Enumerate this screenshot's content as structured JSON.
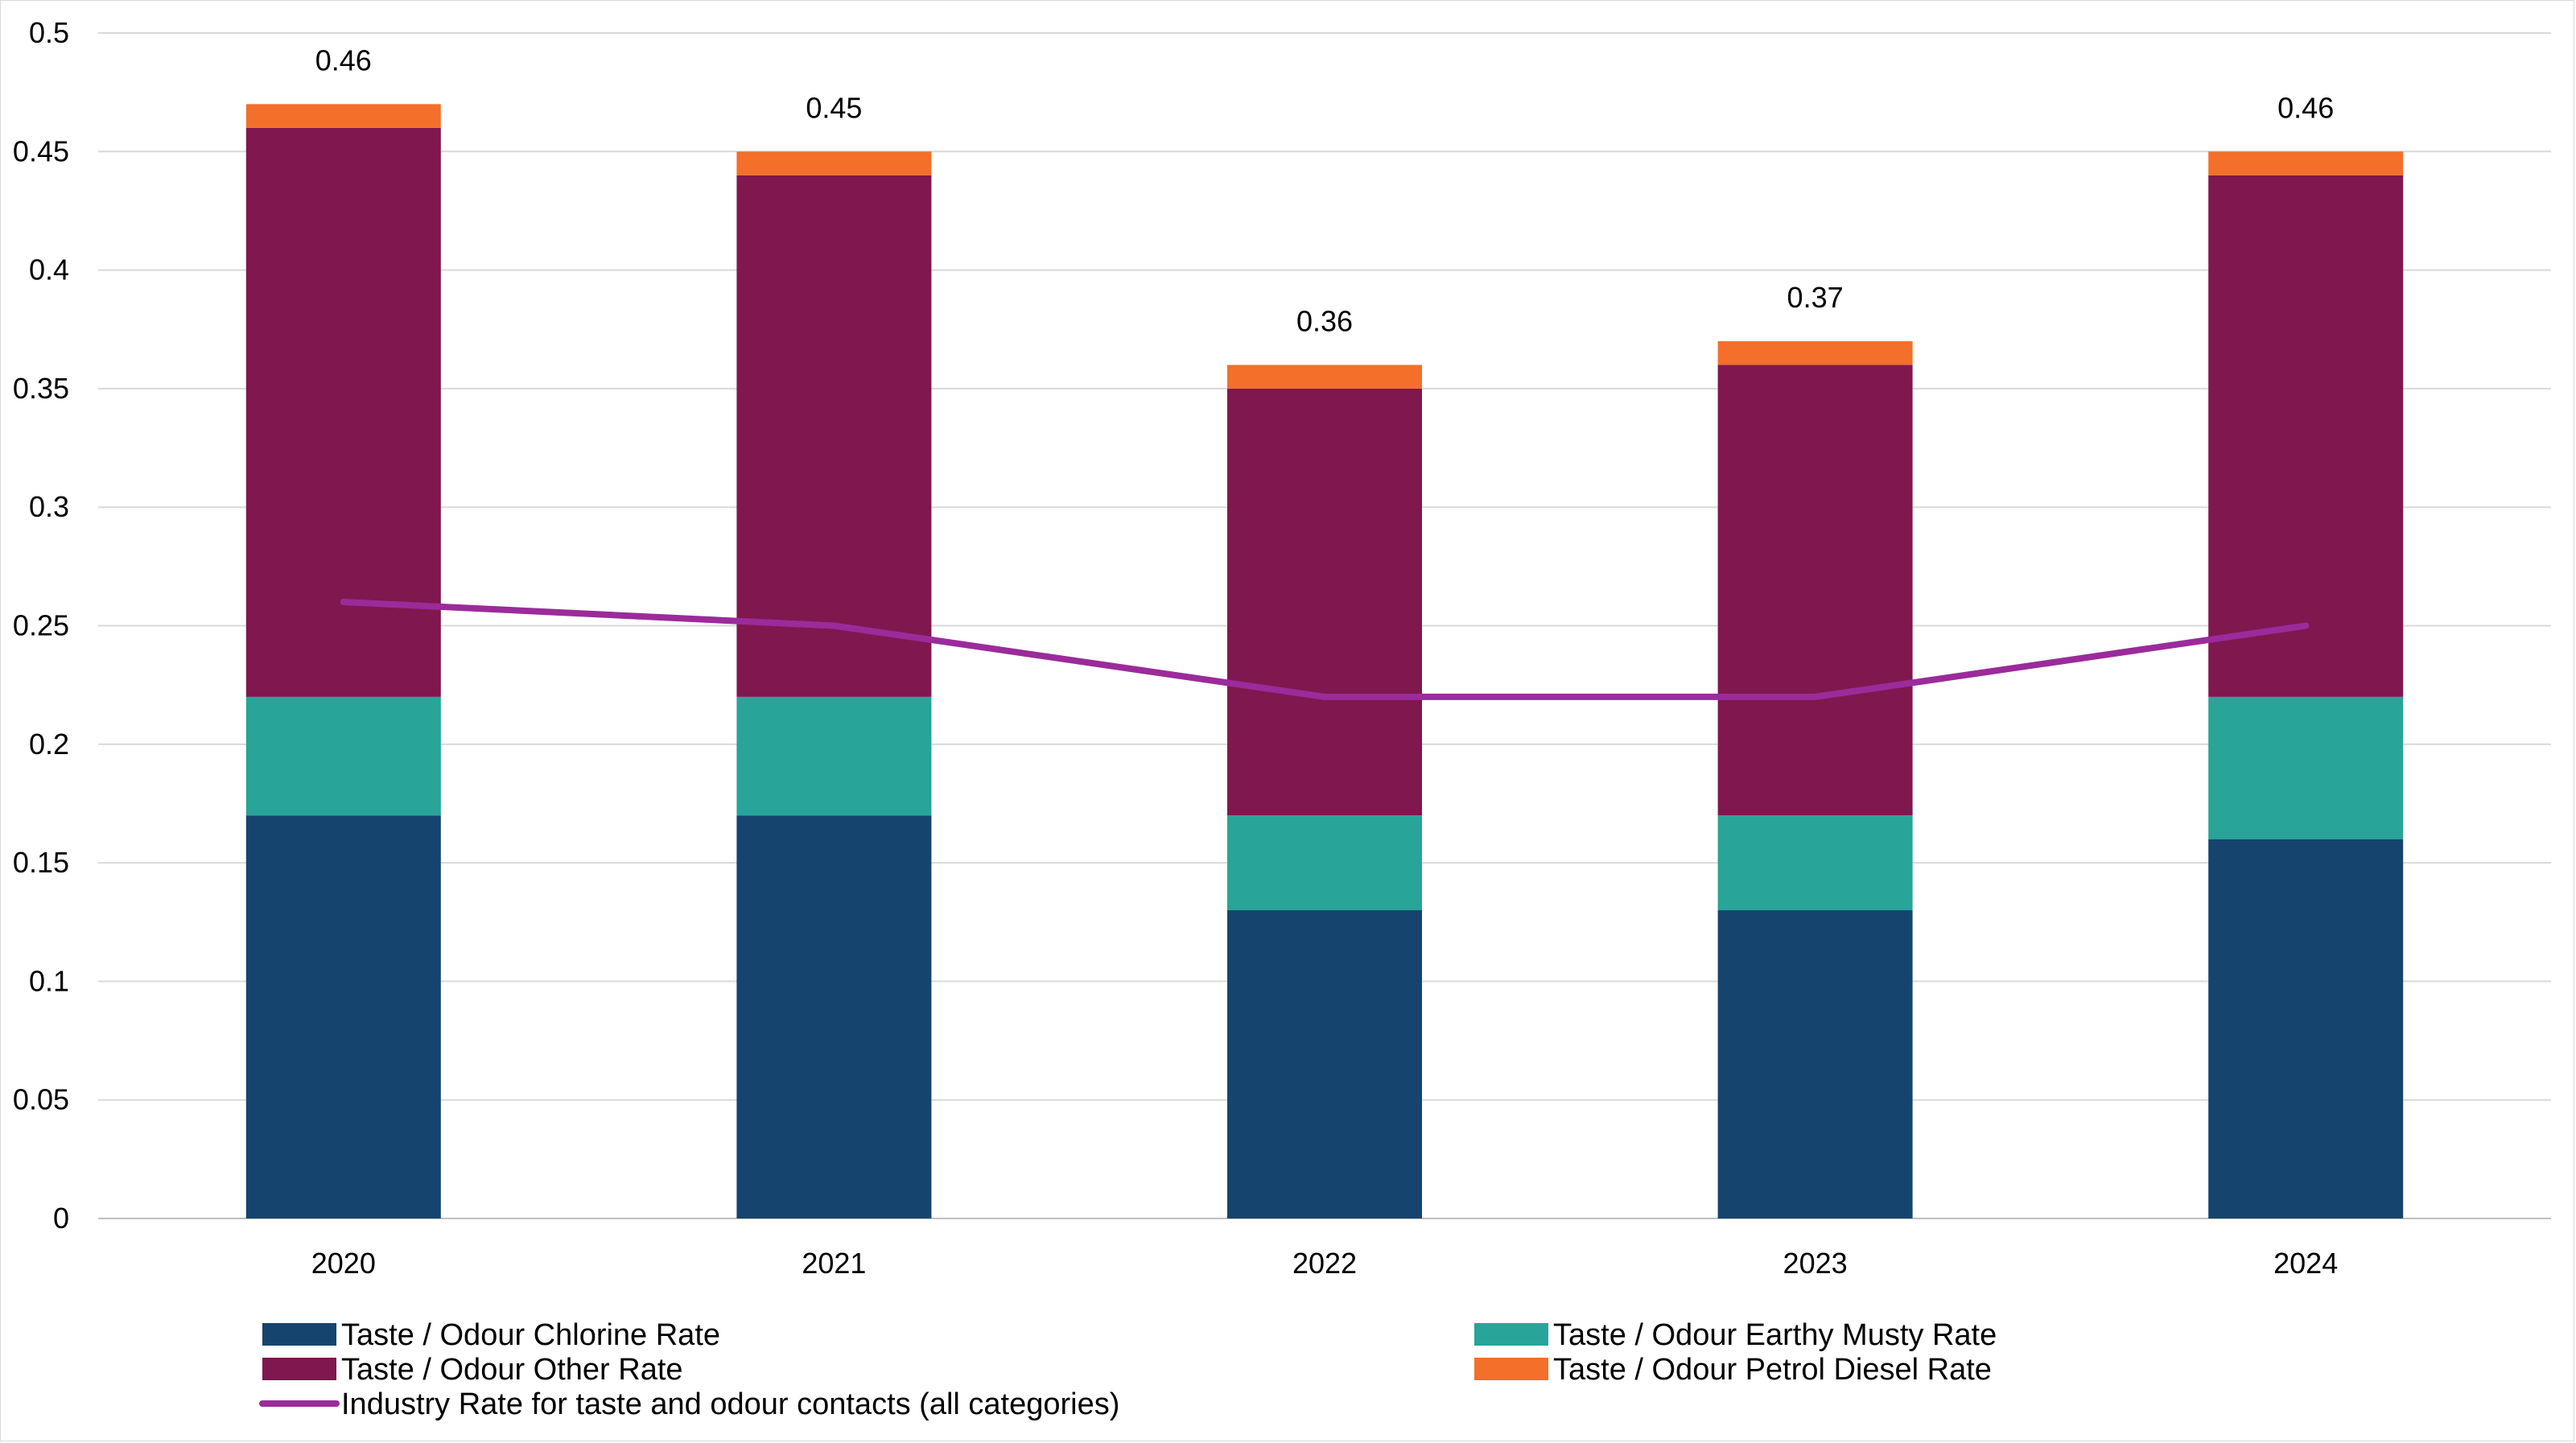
{
  "chart_data": {
    "type": "bar",
    "stacked": true,
    "categories": [
      "2020",
      "2021",
      "2022",
      "2023",
      "2024"
    ],
    "series": [
      {
        "name": "Taste / Odour Chlorine Rate",
        "type": "bar",
        "color": "#15446e",
        "values": [
          0.17,
          0.17,
          0.13,
          0.13,
          0.16
        ]
      },
      {
        "name": "Taste / Odour Earthy Musty Rate",
        "type": "bar",
        "color": "#28a499",
        "values": [
          0.05,
          0.05,
          0.04,
          0.04,
          0.06
        ]
      },
      {
        "name": "Taste / Odour Other Rate",
        "type": "bar",
        "color": "#80174e",
        "values": [
          0.24,
          0.22,
          0.18,
          0.19,
          0.22
        ]
      },
      {
        "name": "Taste / Odour Petrol Diesel Rate",
        "type": "bar",
        "color": "#f36f2a",
        "values": [
          0.01,
          0.01,
          0.01,
          0.01,
          0.01
        ]
      },
      {
        "name": "Industry Rate for taste and odour contacts (all categories)",
        "type": "line",
        "color": "#9b2b9b",
        "values": [
          0.26,
          0.25,
          0.22,
          0.22,
          0.25
        ]
      }
    ],
    "total_labels": [
      "0.46",
      "0.45",
      "0.36",
      "0.37",
      "0.46"
    ],
    "ylim": [
      0,
      0.5
    ],
    "yticks": [
      "0",
      "0.05",
      "0.1",
      "0.15",
      "0.2",
      "0.25",
      "0.3",
      "0.35",
      "0.4",
      "0.45",
      "0.5"
    ],
    "ytick_values": [
      0,
      0.05,
      0.1,
      0.15,
      0.2,
      0.25,
      0.3,
      0.35,
      0.4,
      0.45,
      0.5
    ],
    "grid": true,
    "legend_position": "bottom",
    "title": "",
    "xlabel": "",
    "ylabel": ""
  }
}
